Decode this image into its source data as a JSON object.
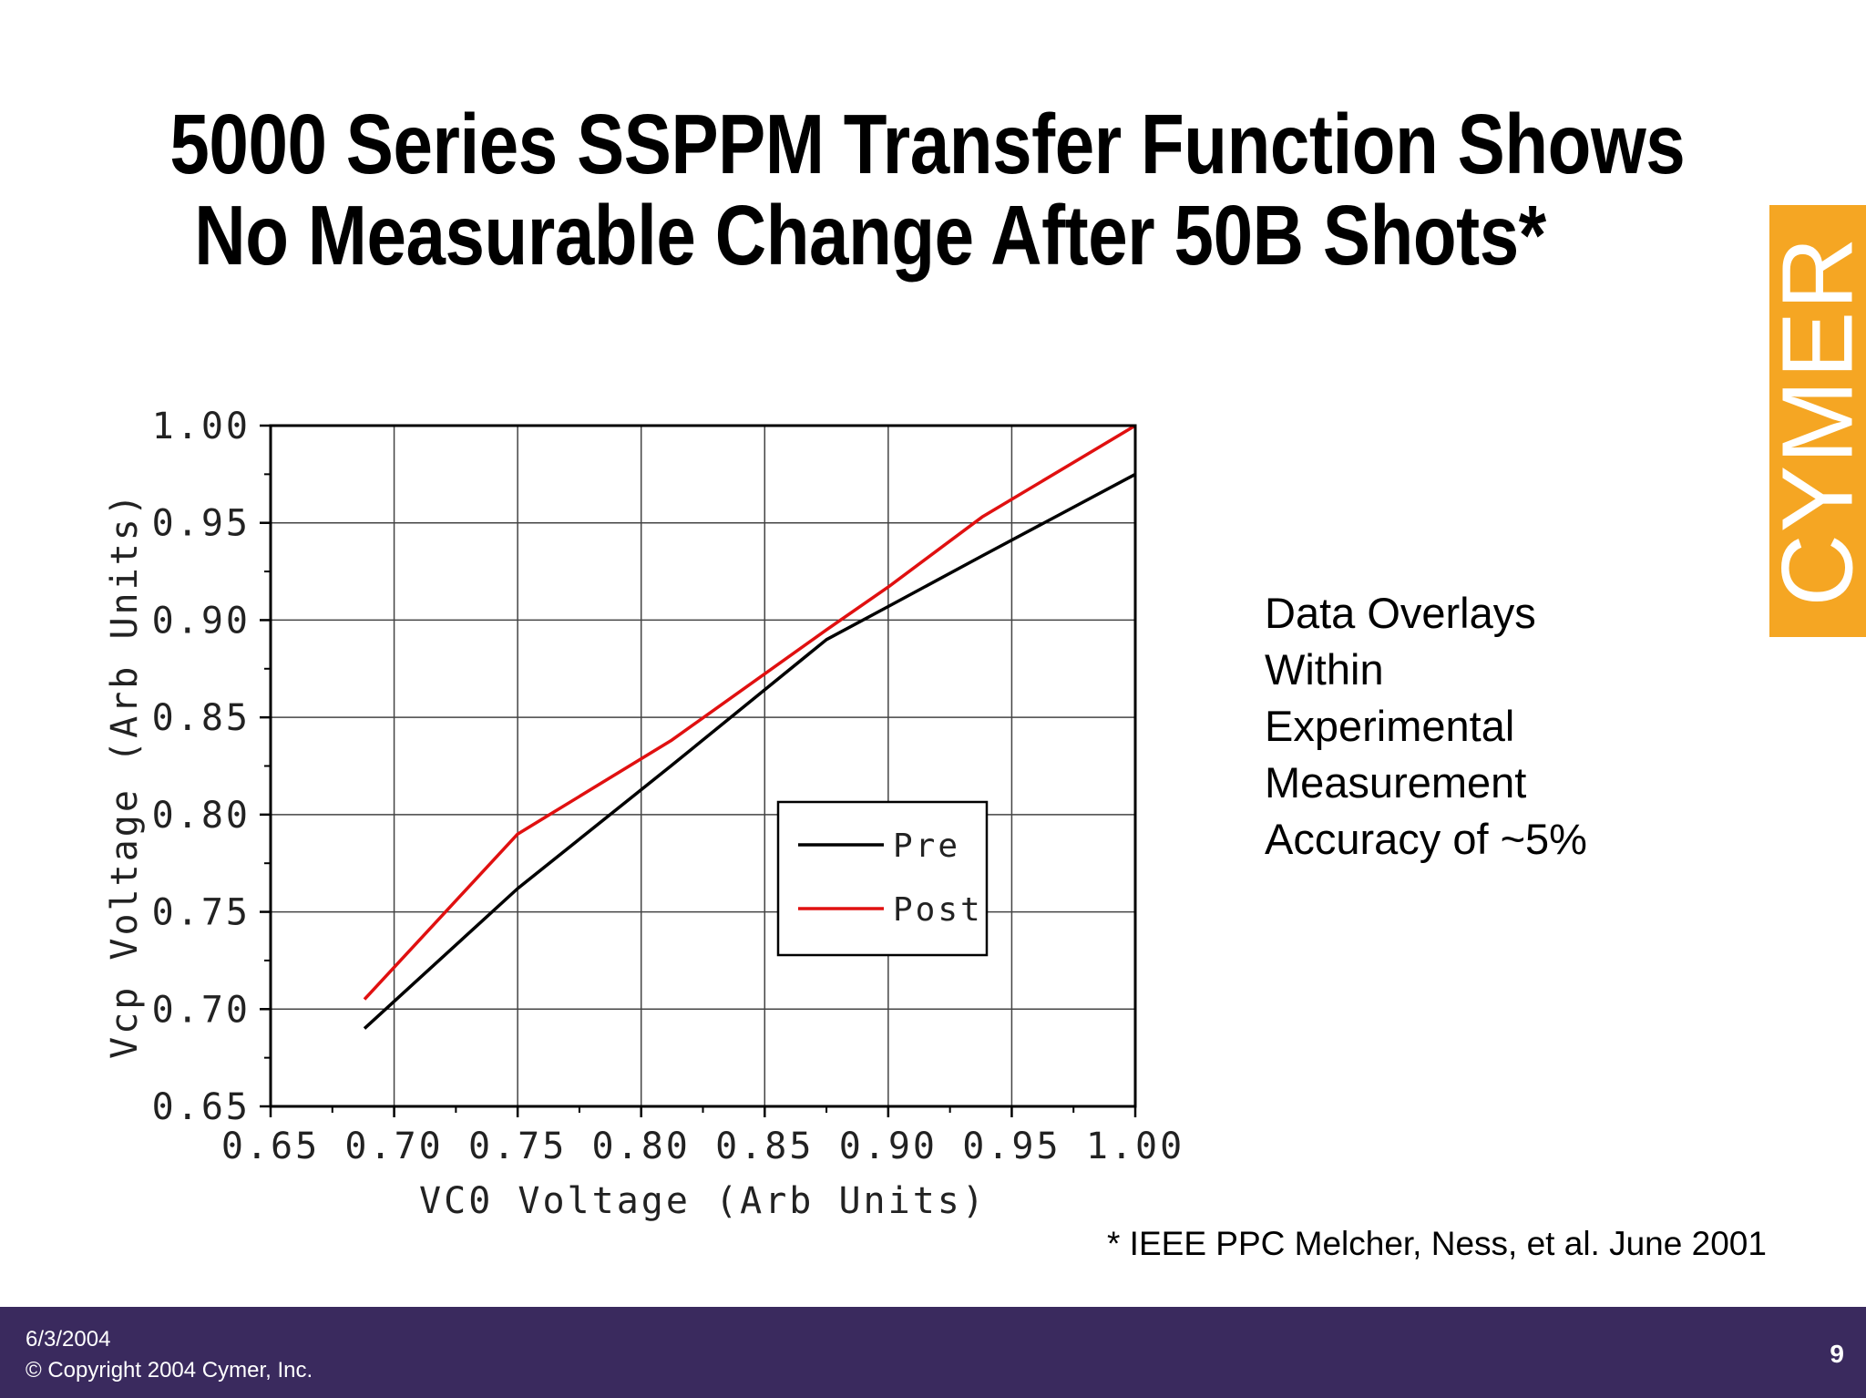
{
  "slide": {
    "title_line1": "5000 Series SSPPM Transfer Function Shows",
    "title_line2": "No Measurable Change After 50B Shots*",
    "logo_text": "CYMER",
    "note_lines": [
      "Data Overlays",
      "Within",
      "Experimental",
      "Measurement",
      "Accuracy of ~5%"
    ],
    "reference": "* IEEE PPC Melcher, Ness, et al. June 2001",
    "footer_date": "6/3/2004",
    "footer_copyright": "© Copyright 2004 Cymer, Inc.",
    "page_number": "9"
  },
  "colors": {
    "logo_bg": "#f5a623",
    "footer_bg": "#3a2a5e",
    "pre_line": "#000000",
    "post_line": "#e01010"
  },
  "chart_data": {
    "type": "line",
    "title": "",
    "xlabel": "VC0 Voltage (Arb Units)",
    "ylabel": "Vcp Voltage (Arb Units)",
    "xlim": [
      0.65,
      1.0
    ],
    "ylim": [
      0.65,
      1.0
    ],
    "xticks": [
      "0.65",
      "0.70",
      "0.75",
      "0.80",
      "0.85",
      "0.90",
      "0.95",
      "1.00"
    ],
    "yticks": [
      "0.65",
      "0.70",
      "0.75",
      "0.80",
      "0.85",
      "0.90",
      "0.95",
      "1.00"
    ],
    "grid": true,
    "legend_position": "inside lower-right",
    "series": [
      {
        "name": "Pre",
        "color": "#000000",
        "points": [
          [
            0.688,
            0.69
          ],
          [
            0.75,
            0.762
          ],
          [
            0.812,
            0.825
          ],
          [
            0.875,
            0.89
          ],
          [
            0.9,
            0.907
          ],
          [
            0.938,
            0.933
          ],
          [
            1.0,
            0.975
          ]
        ]
      },
      {
        "name": "Post",
        "color": "#e01010",
        "points": [
          [
            0.688,
            0.705
          ],
          [
            0.75,
            0.79
          ],
          [
            0.812,
            0.838
          ],
          [
            0.875,
            0.895
          ],
          [
            0.9,
            0.917
          ],
          [
            0.938,
            0.953
          ],
          [
            1.0,
            1.0
          ]
        ]
      }
    ]
  }
}
